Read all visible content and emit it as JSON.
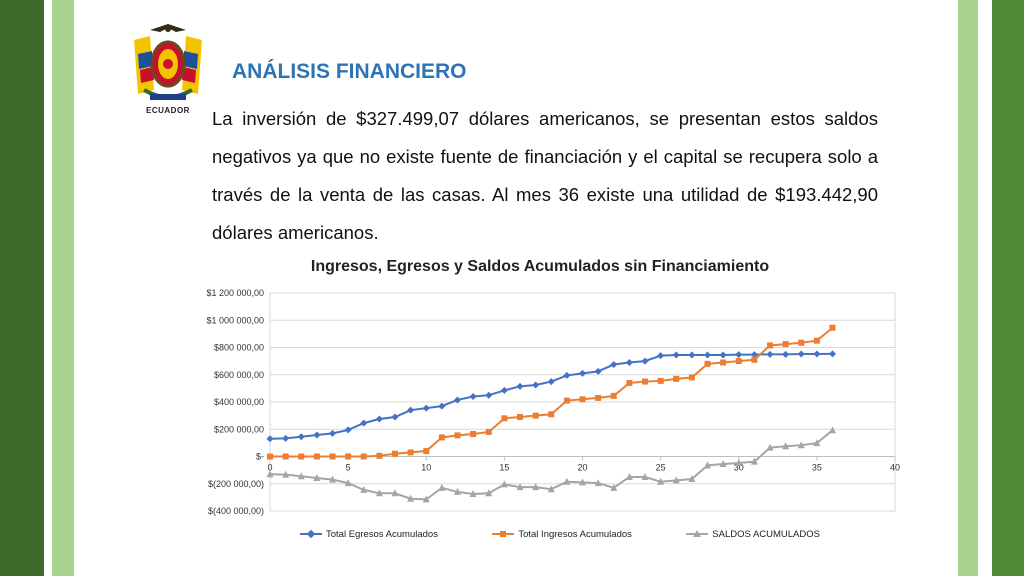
{
  "slide": {
    "logo_text": "ECUADOR",
    "title": "ANÁLISIS FINANCIERO",
    "paragraph": "La inversión de $327.499,07 dólares americanos, se presentan estos saldos negativos ya que no existe fuente de financiación y el capital se recupera solo a través de la venta de las casas. Al mes 36 existe una utilidad de $193.442,90 dólares americanos."
  },
  "colors": {
    "dark_green": "#3e6b2c",
    "light_green": "#a9d18e",
    "title_blue": "#2e74b5",
    "egresos": "#4472c4",
    "ingresos": "#ed7d31",
    "saldos": "#a5a5a5"
  },
  "chart_data": {
    "type": "line",
    "title": "Ingresos, Egresos y Saldos Acumulados sin Financiamiento",
    "xlim": [
      0,
      40
    ],
    "ylim": [
      -400000,
      1200000
    ],
    "x_ticks": [
      "0",
      "5",
      "10",
      "15",
      "20",
      "25",
      "30",
      "35",
      "40"
    ],
    "y_ticks": [
      "$1 200 000,00",
      "$1 000 000,00",
      "$800 000,00",
      "$600 000,00",
      "$400 000,00",
      "$200 000,00",
      "$-",
      "$(200 000,00)",
      "$(400 000,00)"
    ],
    "legend_position": "bottom",
    "grid": true,
    "x": [
      0,
      1,
      2,
      3,
      4,
      5,
      6,
      7,
      8,
      9,
      10,
      11,
      12,
      13,
      14,
      15,
      16,
      17,
      18,
      19,
      20,
      21,
      22,
      23,
      24,
      25,
      26,
      27,
      28,
      29,
      30,
      31,
      32,
      33,
      34,
      35,
      36
    ],
    "series": [
      {
        "name": "Total Egresos Acumulados",
        "marker": "diamond",
        "values": [
          130000,
          133000,
          145000,
          158000,
          170000,
          195000,
          245000,
          275000,
          290000,
          340000,
          355000,
          370000,
          415000,
          440000,
          450000,
          485000,
          515000,
          525000,
          550000,
          595000,
          610000,
          625000,
          675000,
          690000,
          700000,
          740000,
          745000,
          745000,
          745000,
          745000,
          748000,
          748000,
          750000,
          750000,
          752000,
          752000,
          753000
        ]
      },
      {
        "name": "Total Ingresos Acumulados",
        "marker": "square",
        "values": [
          0,
          0,
          0,
          0,
          0,
          0,
          0,
          5000,
          20000,
          30000,
          40000,
          140000,
          155000,
          165000,
          180000,
          280000,
          290000,
          300000,
          310000,
          410000,
          420000,
          430000,
          445000,
          540000,
          550000,
          555000,
          570000,
          580000,
          680000,
          690000,
          700000,
          710000,
          815000,
          825000,
          835000,
          850000,
          945000
        ]
      },
      {
        "name": "SALDOS ACUMULADOS",
        "marker": "triangle",
        "values": [
          -130000,
          -133000,
          -145000,
          -158000,
          -170000,
          -195000,
          -245000,
          -270000,
          -270000,
          -310000,
          -315000,
          -230000,
          -260000,
          -275000,
          -270000,
          -205000,
          -225000,
          -225000,
          -240000,
          -185000,
          -190000,
          -195000,
          -230000,
          -150000,
          -150000,
          -185000,
          -175000,
          -165000,
          -65000,
          -55000,
          -48000,
          -38000,
          65000,
          75000,
          83000,
          98000,
          193000
        ]
      }
    ]
  }
}
